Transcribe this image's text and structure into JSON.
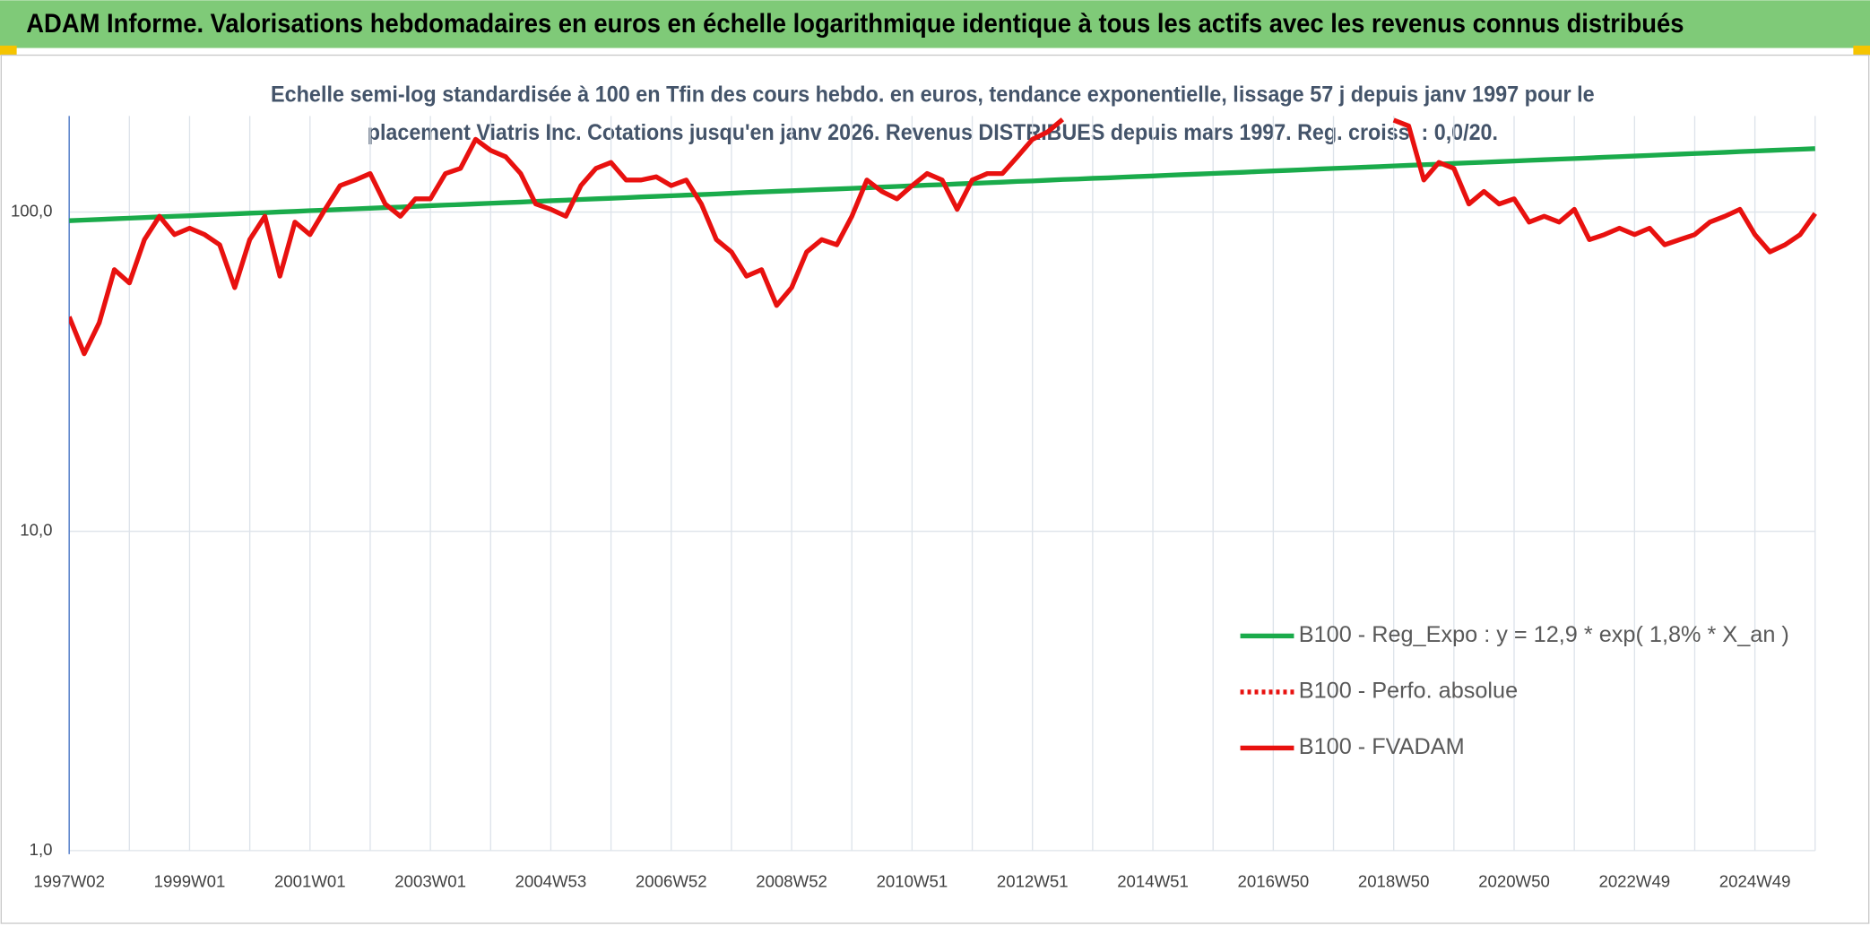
{
  "chart_data": {
    "type": "line",
    "title": "ADAM Informe. Valorisations hebdomadaires en euros en échelle logarithmique identique à tous les actifs avec les revenus connus distribués",
    "subtitle": [
      "Echelle semi-log standardisée à 100 en Tfin des cours hebdo. en euros, tendance exponentielle, lissage 57 j depuis janv 1997 pour le",
      "placement Viatris Inc. Cotations jusqu'en janv 2026. Revenus DISTRIBUES depuis mars 1997. Reg. croiss. : 0,0/20."
    ],
    "log_y": true,
    "grid": true,
    "legend": "lower right",
    "ylim": [
      1,
      200
    ],
    "yticks": [
      {
        "value": 1,
        "label": "1,0"
      },
      {
        "value": 10,
        "label": "10,0"
      },
      {
        "value": 100,
        "label": "100,0"
      }
    ],
    "categories": [
      "1997W02",
      null,
      null,
      null,
      null,
      null,
      null,
      null,
      "1999W01",
      null,
      null,
      null,
      null,
      null,
      null,
      null,
      "2001W01",
      null,
      null,
      null,
      null,
      null,
      null,
      null,
      "2003W01",
      null,
      null,
      null,
      null,
      null,
      null,
      null,
      "2004W53",
      null,
      null,
      null,
      null,
      null,
      null,
      null,
      "2006W52",
      null,
      null,
      null,
      null,
      null,
      null,
      null,
      "2008W52",
      null,
      null,
      null,
      null,
      null,
      null,
      null,
      "2010W51",
      null,
      null,
      null,
      null,
      null,
      null,
      null,
      "2012W51",
      null,
      null,
      null,
      null,
      null,
      null,
      null,
      "2014W51",
      null,
      null,
      null,
      null,
      null,
      null,
      null,
      "2016W50",
      null,
      null,
      null,
      null,
      null,
      null,
      null,
      "2018W50",
      null,
      null,
      null,
      null,
      null,
      null,
      null,
      "2020W50",
      null,
      null,
      null,
      null,
      null,
      null,
      null,
      "2022W49",
      null,
      null,
      null,
      null,
      null,
      null,
      null,
      "2024W49",
      null,
      null,
      null,
      null
    ],
    "series": [
      {
        "name": "B100 - Reg_Expo : y = 12,9 * exp( 1,8% *  X_an )",
        "color": "#1aab4b",
        "dash": "solid",
        "values": [
          94,
          94.4,
          94.8,
          95.3,
          95.7,
          96.1,
          96.6,
          97.0,
          97.4,
          97.9,
          98.3,
          98.7,
          99.2,
          99.6,
          100.1,
          100.5,
          101.0,
          101.4,
          101.9,
          102.3,
          102.8,
          103.3,
          103.7,
          104.2,
          104.7,
          105.2,
          105.6,
          106.1,
          106.6,
          107.0,
          107.5,
          108.0,
          108.5,
          109.0,
          109.5,
          110.0,
          110.5,
          111.0,
          111.5,
          112.0,
          112.5,
          113.0,
          113.5,
          114.0,
          114.5,
          115.1,
          115.6,
          116.1,
          116.6,
          117.1,
          117.6,
          118.1,
          118.7,
          119.2,
          119.8,
          120.3,
          120.8,
          121.4,
          121.9,
          122.5,
          123.0,
          123.6,
          124.1,
          124.7,
          125.2,
          125.8,
          126.4,
          126.9,
          127.5,
          128.0,
          128.6,
          129.2,
          129.8,
          130.4,
          131.0,
          131.6,
          132.1,
          132.7,
          133.3,
          133.9,
          134.5,
          135.1,
          135.7,
          136.4,
          137.0,
          137.6,
          138.2,
          138.8,
          139.5,
          140.1,
          140.7,
          141.3,
          142.0,
          142.6,
          143.3,
          143.9,
          144.5,
          145.2,
          145.8,
          146.5,
          147.1,
          147.8,
          148.5,
          149.1,
          149.8,
          150.5,
          151.2,
          151.9,
          152.5,
          153.2,
          153.9,
          154.6,
          155.3,
          156.0,
          156.6,
          157.3,
          158.0
        ]
      },
      {
        "name": "B100 - Perfo. absolue",
        "color": "#e8110f",
        "dash": "dotted",
        "values": [
          null,
          null,
          null,
          null,
          null,
          null,
          null,
          null,
          null,
          null,
          null,
          null,
          null,
          null,
          null,
          null,
          null,
          null,
          null,
          null,
          null,
          null,
          null,
          null,
          null,
          null,
          null,
          null,
          null,
          null,
          null,
          null,
          null,
          null,
          null,
          null,
          null,
          null,
          null,
          null,
          null,
          null,
          null,
          null,
          null,
          null,
          null,
          null,
          null,
          null,
          null,
          null,
          null,
          null,
          null,
          null,
          null,
          null,
          null,
          null,
          null,
          null,
          null,
          null,
          null,
          null,
          null,
          null,
          null,
          null,
          null,
          null,
          null,
          null,
          null,
          null,
          null,
          null,
          null,
          null,
          null,
          null,
          null,
          null,
          null,
          null,
          null,
          null,
          null,
          null,
          null,
          null,
          null,
          null,
          null,
          null,
          null,
          null,
          null,
          null,
          null,
          null,
          null,
          null,
          null,
          null,
          null,
          null,
          null,
          null,
          null,
          null,
          null,
          null,
          null,
          null,
          null
        ]
      },
      {
        "name": "B100 - FVADAM",
        "color": "#e8110f",
        "dash": "solid",
        "values": [
          47,
          36,
          45,
          66,
          60,
          82,
          97,
          85,
          89,
          85,
          79,
          58,
          82,
          97,
          63,
          93,
          85,
          102,
          121,
          126,
          132,
          106,
          97,
          110,
          110,
          132,
          137,
          169,
          156,
          149,
          132,
          106,
          102,
          97,
          121,
          137,
          143,
          126,
          126,
          129,
          121,
          126,
          106,
          82,
          75,
          63,
          66,
          51,
          58,
          75,
          82,
          79,
          97,
          126,
          116,
          110,
          121,
          132,
          126,
          102,
          126,
          132,
          132,
          149,
          169,
          178,
          195,
          null,
          null,
          null,
          null,
          null,
          null,
          null,
          null,
          null,
          null,
          null,
          null,
          null,
          null,
          null,
          null,
          null,
          null,
          null,
          null,
          null,
          194,
          186,
          126,
          143,
          137,
          106,
          116,
          106,
          110,
          93,
          97,
          93,
          102,
          82,
          85,
          89,
          85,
          89,
          79,
          82,
          85,
          93,
          97,
          102,
          85,
          75,
          79,
          85,
          99
        ]
      }
    ]
  }
}
